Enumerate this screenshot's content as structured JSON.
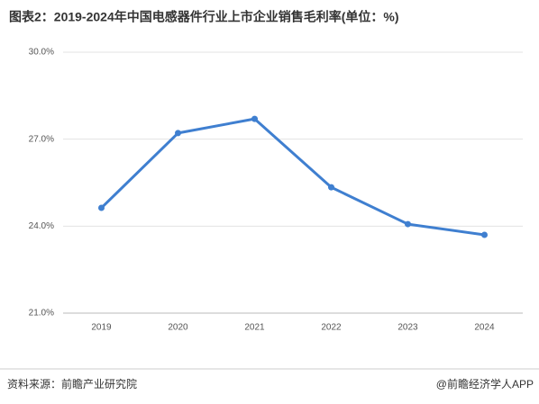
{
  "chart_data": {
    "type": "line",
    "title": "图表2：2019-2024年中国电感器件行业上市企业销售毛利率(单位：%)",
    "categories": [
      "2019",
      "2020",
      "2021",
      "2022",
      "2023",
      "2024"
    ],
    "series": [
      {
        "name": "销售毛利率",
        "color": "#3f7fd0",
        "values": [
          24.63,
          27.21,
          27.7,
          25.34,
          24.07,
          23.7
        ]
      }
    ],
    "ylim": [
      21,
      30
    ],
    "yticks": [
      {
        "value": 21,
        "label": "21.0%"
      },
      {
        "value": 24,
        "label": "24.0%"
      },
      {
        "value": 27,
        "label": "27.0%"
      },
      {
        "value": 30,
        "label": "30.0%"
      }
    ],
    "grid": true
  },
  "footer": {
    "source": "资料来源：前瞻产业研究院",
    "brand": "@前瞻经济学人APP"
  }
}
